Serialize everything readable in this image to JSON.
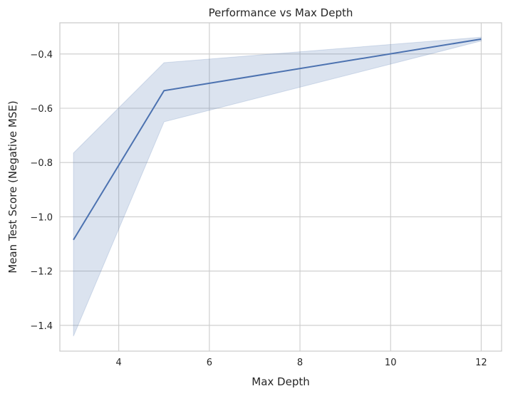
{
  "chart_data": {
    "type": "line",
    "title": "Performance vs Max Depth",
    "xlabel": "Max Depth",
    "ylabel": "Mean Test Score (Negative MSE)",
    "xlim": [
      2.7,
      12.45
    ],
    "ylim": [
      -1.495,
      -0.285
    ],
    "x_ticks": [
      4,
      6,
      8,
      10,
      12
    ],
    "x_tick_labels": [
      "4",
      "6",
      "8",
      "10",
      "12"
    ],
    "y_ticks": [
      -1.4,
      -1.2,
      -1.0,
      -0.8,
      -0.6,
      -0.4
    ],
    "y_tick_labels": [
      "−1.4",
      "−1.2",
      "−1.0",
      "−0.8",
      "−0.6",
      "−0.4"
    ],
    "grid": true,
    "legend": "none",
    "colors": {
      "line": "#4c72b0",
      "band": "#4c72b0",
      "grid": "#cccccc",
      "background": "#ffffff"
    },
    "series": [
      {
        "x": [
          3,
          5,
          12
        ],
        "values": [
          -1.085,
          -0.535,
          -0.345
        ],
        "band_lower": [
          -1.44,
          -0.65,
          -0.352
        ],
        "band_upper": [
          -0.765,
          -0.432,
          -0.338
        ]
      }
    ]
  }
}
